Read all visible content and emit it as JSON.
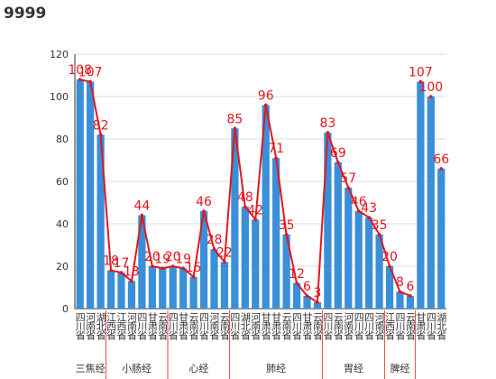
{
  "title": "9999",
  "chart_data": {
    "type": "bar_line",
    "bar_color": "#3a8fd9",
    "line_color": "#e0181f",
    "ylim": [
      0,
      120
    ],
    "yticks": [
      0,
      20,
      40,
      60,
      80,
      100,
      120
    ],
    "grid": true,
    "groups": [
      {
        "name": "三焦经",
        "line": true,
        "categories": [
          "四川省",
          "河南省",
          "湖北省"
        ],
        "values": [
          108,
          107,
          82
        ]
      },
      {
        "name": "小肠经",
        "line": true,
        "categories": [
          "江西省",
          "江西省",
          "河南省",
          "四川省",
          "甘肃省",
          "云南省"
        ],
        "values": [
          18,
          17,
          13,
          44,
          20,
          19
        ]
      },
      {
        "name": "心经",
        "line": true,
        "categories": [
          "四川省",
          "甘肃省",
          "云南省",
          "四川省",
          "河南省",
          "云南省"
        ],
        "values": [
          20,
          19,
          15,
          46,
          28,
          22
        ]
      },
      {
        "name": "肺经",
        "line": true,
        "categories": [
          "四川省",
          "湖北省",
          "河南省",
          "甘肃省",
          "甘肃省",
          "云南省",
          "四川省",
          "甘肃省",
          "云南省"
        ],
        "values": [
          85,
          48,
          42,
          96,
          71,
          35,
          12,
          6,
          3
        ]
      },
      {
        "name": "胃经",
        "line": true,
        "categories": [
          "四川省",
          "云南省",
          "河南省",
          "四川省",
          "四川省",
          "河南省"
        ],
        "values": [
          83,
          69,
          57,
          46,
          43,
          35
        ]
      },
      {
        "name": "脾经",
        "line": true,
        "categories": [
          "江西省",
          "四川省",
          "云南省"
        ],
        "values": [
          20,
          8,
          6
        ]
      },
      {
        "name": null,
        "line": false,
        "categories": [
          "甘肃省",
          "四川省",
          "湖北省"
        ],
        "values": [
          107,
          100,
          66
        ]
      }
    ]
  }
}
